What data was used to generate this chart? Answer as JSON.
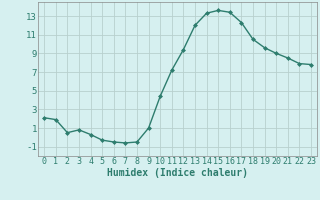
{
  "x": [
    0,
    1,
    2,
    3,
    4,
    5,
    6,
    7,
    8,
    9,
    10,
    11,
    12,
    13,
    14,
    15,
    16,
    17,
    18,
    19,
    20,
    21,
    22,
    23
  ],
  "y": [
    2.1,
    1.9,
    0.5,
    0.8,
    0.3,
    -0.3,
    -0.5,
    -0.6,
    -0.5,
    1.0,
    4.4,
    7.2,
    9.4,
    12.0,
    13.3,
    13.6,
    13.4,
    12.3,
    10.5,
    9.6,
    9.0,
    8.5,
    7.9,
    7.8
  ],
  "line_color": "#2e7d6e",
  "marker": "D",
  "marker_size": 2.0,
  "linewidth": 1.0,
  "xlabel": "Humidex (Indice chaleur)",
  "xlabel_fontsize": 7,
  "background_color": "#d6f0f0",
  "grid_color": "#b8d0ce",
  "tick_color": "#2e7d6e",
  "ylim": [
    -2,
    14.5
  ],
  "xlim": [
    -0.5,
    23.5
  ],
  "yticks": [
    -1,
    1,
    3,
    5,
    7,
    9,
    11,
    13
  ],
  "xticks": [
    0,
    1,
    2,
    3,
    4,
    5,
    6,
    7,
    8,
    9,
    10,
    11,
    12,
    13,
    14,
    15,
    16,
    17,
    18,
    19,
    20,
    21,
    22,
    23
  ],
  "tick_fontsize": 6,
  "ytick_fontsize": 6.5
}
